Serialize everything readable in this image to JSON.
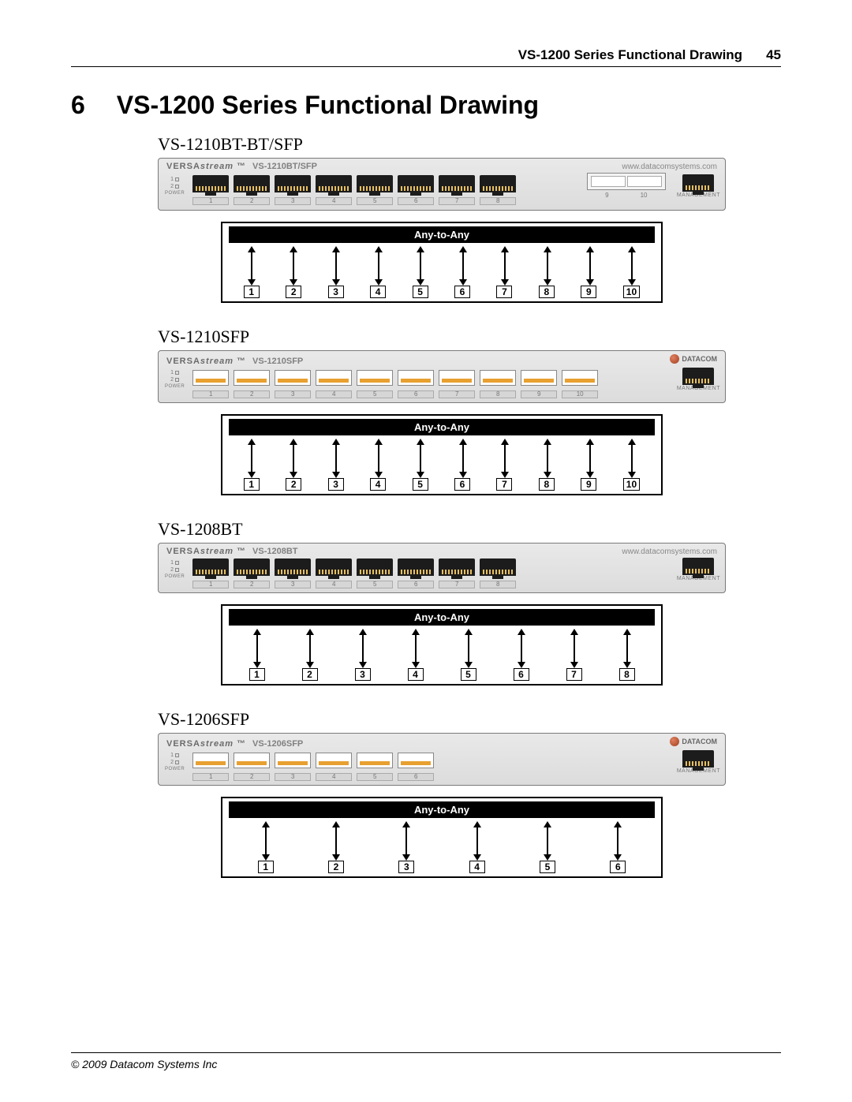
{
  "header": {
    "title": "VS-1200 Series Functional Drawing",
    "page": "45"
  },
  "chapter": {
    "number": "6",
    "title": "VS-1200 Series Functional Drawing"
  },
  "footer": {
    "copyright": "© 2009 Datacom Systems Inc"
  },
  "common": {
    "brand_prefix": "VERSA",
    "brand_suffix": "stream",
    "tm": "™",
    "url": "www.datacomsystems.com",
    "logo_text": "DATACOM",
    "mgmt_label": "MANAGEMENT",
    "power_label": "POWER",
    "led1": "1",
    "led2": "2",
    "any_to_any": "Any-to-Any",
    "colors": {
      "panel_bg_top": "#e9e9e9",
      "panel_bg_bottom": "#dcdcdc",
      "panel_border": "#7a7a7a",
      "text_muted": "#777777",
      "port_body": "#1c1c1c",
      "contact_gold": "#e8c060",
      "sfp_gold": "#e8a030",
      "schematic_border": "#000000",
      "page_bg": "#ffffff"
    }
  },
  "models": [
    {
      "label": "VS-1210BT-BT/SFP",
      "panel_model": "VS-1210BT/SFP",
      "top_right": "url",
      "port_rows": [
        {
          "type": "rj45",
          "count": 8,
          "numbers": [
            "1",
            "2",
            "3",
            "4",
            "5",
            "6",
            "7",
            "8"
          ]
        }
      ],
      "extra_slot": {
        "type": "sfp-wide",
        "numbers": [
          "9",
          "10"
        ]
      },
      "schematic_ports": [
        "1",
        "2",
        "3",
        "4",
        "5",
        "6",
        "7",
        "8",
        "9",
        "10"
      ]
    },
    {
      "label": "VS-1210SFP",
      "panel_model": "VS-1210SFP",
      "top_right": "logo",
      "port_rows": [
        {
          "type": "sfp",
          "count": 10,
          "group": 2,
          "numbers": [
            "1",
            "2",
            "3",
            "4",
            "5",
            "6",
            "7",
            "8",
            "9",
            "10"
          ]
        }
      ],
      "schematic_ports": [
        "1",
        "2",
        "3",
        "4",
        "5",
        "6",
        "7",
        "8",
        "9",
        "10"
      ]
    },
    {
      "label": "VS-1208BT",
      "panel_model": "VS-1208BT",
      "top_right": "url",
      "port_rows": [
        {
          "type": "rj45",
          "count": 8,
          "numbers": [
            "1",
            "2",
            "3",
            "4",
            "5",
            "6",
            "7",
            "8"
          ]
        }
      ],
      "schematic_ports": [
        "1",
        "2",
        "3",
        "4",
        "5",
        "6",
        "7",
        "8"
      ]
    },
    {
      "label": "VS-1206SFP",
      "panel_model": "VS-1206SFP",
      "top_right": "logo",
      "port_rows": [
        {
          "type": "sfp",
          "count": 6,
          "group": 2,
          "numbers": [
            "1",
            "2",
            "3",
            "4",
            "5",
            "6"
          ]
        }
      ],
      "schematic_ports": [
        "1",
        "2",
        "3",
        "4",
        "5",
        "6"
      ]
    }
  ]
}
